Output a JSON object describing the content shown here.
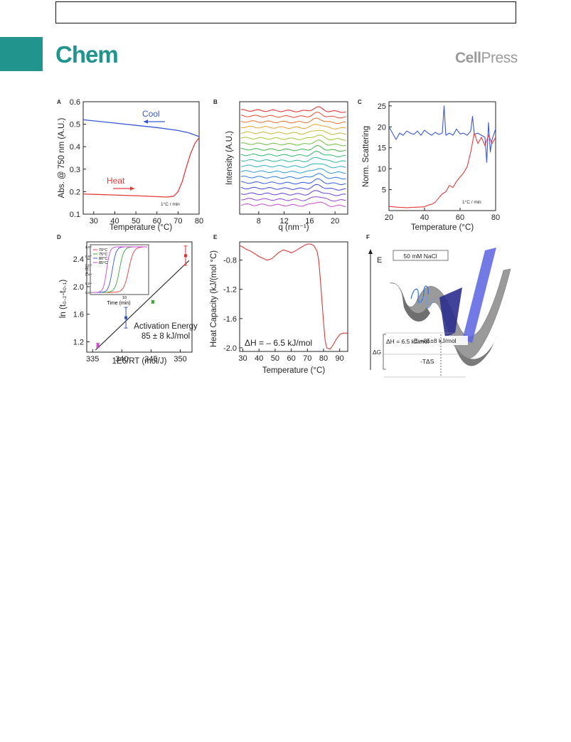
{
  "header": {
    "journal": "Chem",
    "publisher_cell": "Cell",
    "publisher_press": "Press"
  },
  "figure": {
    "panels": {
      "A": {
        "label": "A",
        "chart_data": {
          "type": "line",
          "xlabel": "Temperature (°C)",
          "ylabel": "Abs. @ 750 nm (A.U.)",
          "xlim": [
            25,
            80
          ],
          "ylim": [
            0.1,
            0.6
          ],
          "xticks": [
            "30",
            "40",
            "50",
            "60",
            "70",
            "80"
          ],
          "yticks": [
            "0.1",
            "0.2",
            "0.3",
            "0.4",
            "0.5",
            "0.6"
          ],
          "series": [
            {
              "name": "Cool",
              "color": "#3a57d6",
              "x": [
                25,
                30,
                40,
                50,
                60,
                70,
                75,
                78,
                80
              ],
              "y": [
                0.52,
                0.515,
                0.505,
                0.495,
                0.485,
                0.472,
                0.462,
                0.452,
                0.445
              ]
            },
            {
              "name": "Heat",
              "color": "#e53b3b",
              "x": [
                25,
                30,
                40,
                50,
                60,
                65,
                68,
                70,
                72,
                74,
                76,
                78,
                80
              ],
              "y": [
                0.19,
                0.188,
                0.185,
                0.182,
                0.178,
                0.176,
                0.18,
                0.2,
                0.245,
                0.31,
                0.37,
                0.415,
                0.44
              ]
            }
          ],
          "annotations": {
            "cool": "Cool",
            "heat": "Heat",
            "rate": "1°C / min"
          }
        }
      },
      "B": {
        "label": "B",
        "chart_data": {
          "type": "line",
          "xlabel": "q (nm⁻¹)",
          "ylabel": "Intensity (A.U.)",
          "xlim": [
            5,
            22
          ],
          "xticks": [
            "8",
            "12",
            "16",
            "20"
          ],
          "curve_count": 18,
          "curve_colors": [
            "#e02525",
            "#e44a2b",
            "#e8702e",
            "#e8a332",
            "#c5b936",
            "#a0c23a",
            "#6dbf3f",
            "#3fb449",
            "#32b56e",
            "#2eb59a",
            "#2fb0c4",
            "#2f9ad6",
            "#307bd8",
            "#325cd8",
            "#3c47d4",
            "#6244cf",
            "#9546cc",
            "#c54bcc"
          ]
        }
      },
      "C": {
        "label": "C",
        "chart_data": {
          "type": "line",
          "xlabel": "Temperature (°C)",
          "ylabel": "Norm. Scattering",
          "xlim": [
            20,
            80
          ],
          "ylim": [
            0,
            26
          ],
          "xticks": [
            "20",
            "40",
            "60",
            "80"
          ],
          "yticks": [
            "5",
            "10",
            "15",
            "20",
            "25"
          ],
          "series": [
            {
              "name": "",
              "color": "#3a57d6",
              "x": [
                20,
                22,
                24,
                26,
                28,
                30,
                32,
                34,
                36,
                38,
                40,
                42,
                44,
                46,
                48,
                50,
                51,
                52,
                54,
                56,
                58,
                60,
                62,
                64,
                66,
                67,
                68,
                70,
                72,
                74,
                75,
                76,
                77,
                78,
                80
              ],
              "y": [
                20,
                18.5,
                17,
                18.5,
                18,
                19,
                18.5,
                18.2,
                19,
                18,
                19.2,
                18.5,
                18,
                18.7,
                18.2,
                18.5,
                25,
                18,
                18.5,
                18,
                19.5,
                18.3,
                18.5,
                18,
                19,
                22.5,
                18.2,
                18.5,
                18,
                17.5,
                11.5,
                21,
                14,
                17,
                19.5
              ]
            },
            {
              "name": "",
              "color": "#e53b3b",
              "x": [
                20,
                25,
                30,
                35,
                40,
                42,
                44,
                46,
                48,
                50,
                52,
                54,
                56,
                58,
                60,
                62,
                64,
                66,
                68,
                70,
                72,
                74,
                76,
                78,
                80
              ],
              "y": [
                1,
                0.8,
                0.7,
                0.8,
                0.9,
                1.3,
                1.5,
                2,
                3,
                4,
                4.5,
                6,
                5.5,
                7,
                8,
                9,
                10.5,
                14,
                18.5,
                16,
                17.5,
                15.5,
                18,
                16,
                17.5
              ]
            }
          ],
          "annotations": {
            "rate": "1°C / min"
          }
        }
      },
      "D": {
        "label": "D",
        "chart_data": {
          "type": "scatter",
          "xlabel": "1E6/RT (mol/J)",
          "ylabel": "ln (t₀.₂-t₀.₁)",
          "xlim": [
            334,
            352
          ],
          "ylim": [
            1.05,
            2.65
          ],
          "xticks": [
            "335",
            "340",
            "345",
            "350"
          ],
          "yticks": [
            "1.2",
            "1.6",
            "2.0",
            "2.4"
          ],
          "points": [
            {
              "x": 335.9,
              "y": 1.15,
              "err": 0.03,
              "color": "#cc44cc"
            },
            {
              "x": 340.7,
              "y": 1.55,
              "err": 0.15,
              "color": "#3050c8"
            },
            {
              "x": 345.3,
              "y": 1.78,
              "err": 0.02,
              "color": "#3aa53a"
            },
            {
              "x": 350.9,
              "y": 2.45,
              "err": 0.14,
              "color": "#e03030"
            }
          ],
          "fit_line": {
            "x": [
              335.5,
              351.5
            ],
            "y": [
              1.08,
              2.38
            ]
          },
          "annotations": {
            "line1": "Activation Energy",
            "line2": "85 ± 8 kJ/mol"
          },
          "inset": {
            "xlabel": "Time (min)",
            "ylabel": "x (t)",
            "yticks": [
              "0.0",
              "0.2",
              "0.4",
              "0.6",
              "0.8",
              "1.0"
            ],
            "xtick": "10",
            "legend": [
              {
                "label": "70°C",
                "color": "#e53b3b"
              },
              {
                "label": "75°C",
                "color": "#3aa53a"
              },
              {
                "label": "80°C",
                "color": "#3a57d6"
              },
              {
                "label": "85°C",
                "color": "#cc44cc"
              }
            ]
          }
        }
      },
      "E": {
        "label": "E",
        "chart_data": {
          "type": "line",
          "xlabel": "Temperature (°C)",
          "ylabel": "Heat Capacity (kJ/(mol °C)",
          "xlim": [
            28,
            95
          ],
          "ylim": [
            -2.05,
            -0.55
          ],
          "xticks": [
            "30",
            "40",
            "50",
            "60",
            "70",
            "80",
            "90"
          ],
          "yticks": [
            "-0.8",
            "-1.2",
            "-1.6",
            "-2.0"
          ],
          "series": [
            {
              "name": "",
              "color": "#d93a3a",
              "x": [
                28,
                30,
                32,
                35,
                38,
                40,
                42,
                45,
                48,
                50,
                52,
                55,
                58,
                60,
                62,
                65,
                68,
                70,
                72,
                74,
                76,
                77,
                78,
                79,
                80,
                81,
                82,
                84,
                86,
                88,
                90,
                92,
                95
              ],
              "y": [
                -0.6,
                -0.62,
                -0.65,
                -0.68,
                -0.72,
                -0.75,
                -0.77,
                -0.8,
                -0.78,
                -0.74,
                -0.7,
                -0.66,
                -0.68,
                -0.7,
                -0.68,
                -0.64,
                -0.6,
                -0.58,
                -0.58,
                -0.6,
                -0.68,
                -0.8,
                -1.05,
                -1.35,
                -1.65,
                -1.9,
                -2.0,
                -2.02,
                -1.96,
                -1.88,
                -1.82,
                -1.8,
                -1.8
              ]
            }
          ],
          "annotations": {
            "dH": "ΔH = – 6.5 kJ/mol"
          }
        }
      },
      "F": {
        "label": "F",
        "axis_label": "E",
        "condition": "50 mM NaCl",
        "ea_label": "Eₐ=85±8 kJ/mol",
        "dh_label": "ΔH = 6.5 kJ/mol",
        "dg_label": "ΔG",
        "tds_label": "-TΔS"
      }
    }
  }
}
